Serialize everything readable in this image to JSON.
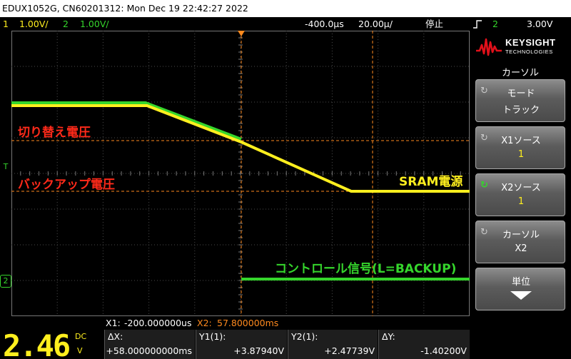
{
  "title_bar": "EDUX1052G, CN60201312: Mon Dec 19 22:42:27 2022",
  "status": {
    "ch1_num": "1",
    "ch1_scale": "1.00V/",
    "ch2_num": "2",
    "ch2_scale": "1.00V/",
    "time_delay": "-400.0µ",
    "time_scale": "20.00µ/",
    "run_state": "停止",
    "trig_source": "2",
    "trig_level": "3.00V",
    "trig_slope_icon": "rising-edge-icon"
  },
  "colors": {
    "ch1": "#ffef1e",
    "ch2": "#35d52c",
    "annotation_red": "#ff2a1a",
    "cursor": "#ff8a1e",
    "grid": "#4a4a4a"
  },
  "screen": {
    "annotations": {
      "switch_voltage": "切り替え電圧",
      "backup_voltage": "バックアップ電圧",
      "sram_power": "SRAM電源",
      "control_signal": "コントロール信号(L=BACKUP)"
    },
    "markers": {
      "ch2_ground": "2",
      "trigger": "T"
    }
  },
  "panel": {
    "brand": "KEYSIGHT",
    "brand_sub": "TECHNOLOGIES",
    "menu_title": "カーソル",
    "softkeys": [
      {
        "label": "モード",
        "value": "トラック",
        "icon": "rotate-knob-icon"
      },
      {
        "label": "X1ソース",
        "value": "1",
        "icon": "rotate-knob-icon"
      },
      {
        "label": "X2ソース",
        "value": "1",
        "icon": "rotate-knob-icon"
      },
      {
        "label": "カーソル",
        "value": "X2",
        "icon": "rotate-knob-icon"
      },
      {
        "label": "単位",
        "value": "",
        "icon": "down-arrow-icon"
      }
    ]
  },
  "bottom": {
    "x1_label": "X1:",
    "x1_value": "-200.000000us",
    "x2_label": "X2:",
    "x2_value": "57.800000ms",
    "big_value": "2.46",
    "big_coupling": "DC",
    "big_unit": "V",
    "meas": [
      {
        "label": "ΔX:",
        "value": "+58.000000000ms"
      },
      {
        "label": "Y1(1):",
        "value": "+3.87940V"
      },
      {
        "label": "Y2(1):",
        "value": "+2.47739V"
      },
      {
        "label": "ΔY:",
        "value": "-1.40200V"
      }
    ]
  }
}
